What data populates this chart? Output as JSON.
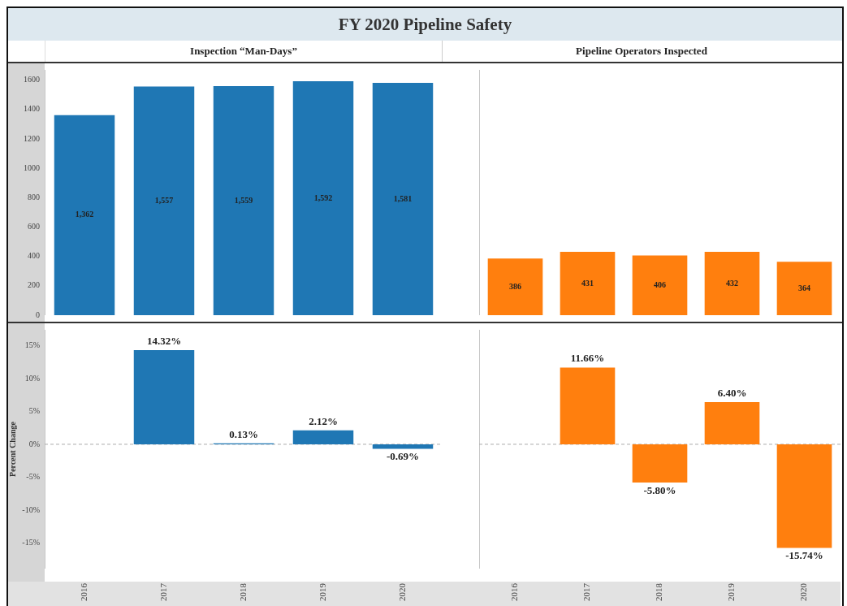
{
  "chart_data": [
    {
      "type": "bar",
      "title": "FY 2020 Pipeline Safety",
      "subtitle": "Inspection “Man-Days”",
      "categories": [
        "2016",
        "2017",
        "2018",
        "2019",
        "2020"
      ],
      "values": [
        1362,
        1557,
        1559,
        1592,
        1581
      ],
      "value_labels": [
        "1,362",
        "1,557",
        "1,559",
        "1,592",
        "1,581"
      ],
      "color": "#1f77b4",
      "ylim": [
        0,
        1670
      ],
      "yticks": [
        0,
        200,
        400,
        600,
        800,
        1000,
        1200,
        1400,
        1600
      ],
      "tick_labels": "y"
    },
    {
      "type": "bar",
      "subtitle": "Pipeline Operators Inspected",
      "categories": [
        "2016",
        "2017",
        "2018",
        "2019",
        "2020"
      ],
      "values": [
        386,
        431,
        406,
        432,
        364
      ],
      "value_labels": [
        "386",
        "431",
        "406",
        "432",
        "364"
      ],
      "color": "#ff7f0e",
      "ylim": [
        0,
        1670
      ],
      "tick_labels": false
    },
    {
      "type": "bar",
      "ylabel": "Percent Change",
      "categories": [
        "2016",
        "2017",
        "2018",
        "2019",
        "2020"
      ],
      "values": [
        null,
        14.32,
        0.13,
        2.12,
        -0.69
      ],
      "value_labels": [
        null,
        "14.32%",
        "0.13%",
        "2.12%",
        "-0.69%"
      ],
      "color": "#1f77b4",
      "ylim": [
        -18.9,
        17.4
      ],
      "yticks": [
        {
          "value": -15,
          "label": "-15%"
        },
        {
          "value": -10,
          "label": "-10%"
        },
        {
          "value": -5,
          "label": "-5%"
        },
        {
          "value": 0,
          "label": "0%"
        },
        {
          "value": 5,
          "label": "5%"
        },
        {
          "value": 10,
          "label": "10%"
        },
        {
          "value": 15,
          "label": "15%"
        }
      ],
      "ref_lines": [
        {
          "axis": "y",
          "value": 0,
          "color": "#aaaaaa",
          "line_style": "dashed"
        }
      ]
    },
    {
      "type": "bar",
      "categories": [
        "2016",
        "2017",
        "2018",
        "2019",
        "2020"
      ],
      "values": [
        null,
        11.66,
        -5.8,
        6.4,
        -15.74
      ],
      "value_labels": [
        null,
        "11.66%",
        "-5.80%",
        "6.40%",
        "-15.74%"
      ],
      "color": "#ff7f0e",
      "ylim": [
        -18.9,
        17.4
      ],
      "ref_lines": [
        {
          "axis": "y",
          "value": 0,
          "color": "#aaaaaa",
          "line_style": "dashed"
        }
      ],
      "tick_labels": "x"
    }
  ]
}
